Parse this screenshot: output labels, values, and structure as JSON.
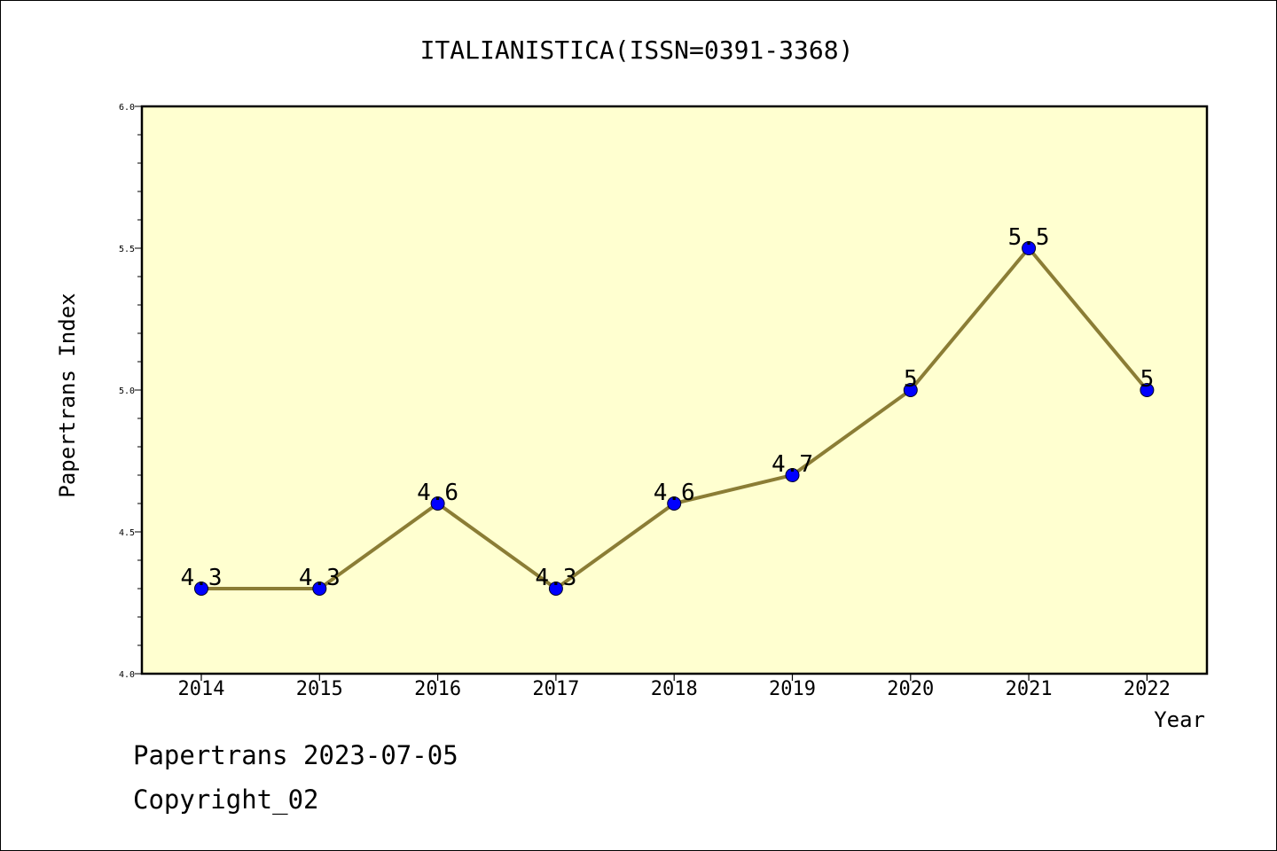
{
  "chart_data": {
    "type": "line",
    "title": "ITALIANISTICA(ISSN=0391-3368)",
    "xlabel": "Year",
    "ylabel": "Papertrans Index",
    "categories": [
      "2014",
      "2015",
      "2016",
      "2017",
      "2018",
      "2019",
      "2020",
      "2021",
      "2022"
    ],
    "series": [
      {
        "values": [
          4.3,
          4.3,
          4.6,
          4.3,
          4.6,
          4.7,
          5.0,
          5.5,
          5.0
        ],
        "labels": [
          "4.3",
          "4.3",
          "4.6",
          "4.3",
          "4.6",
          "4.7",
          "5",
          "5.5",
          "5"
        ],
        "line_color": "#8b7d35",
        "marker_color": "#0000ff"
      }
    ],
    "ylim": [
      4.0,
      6.0
    ],
    "yticks": [
      "4.0",
      "4.5",
      "5.0",
      "5.5",
      "6.0"
    ],
    "grid": false,
    "plot_background": "#ffffd0"
  },
  "footer": {
    "line1": "Papertrans 2023-07-05",
    "line2": "Copyright_02"
  }
}
